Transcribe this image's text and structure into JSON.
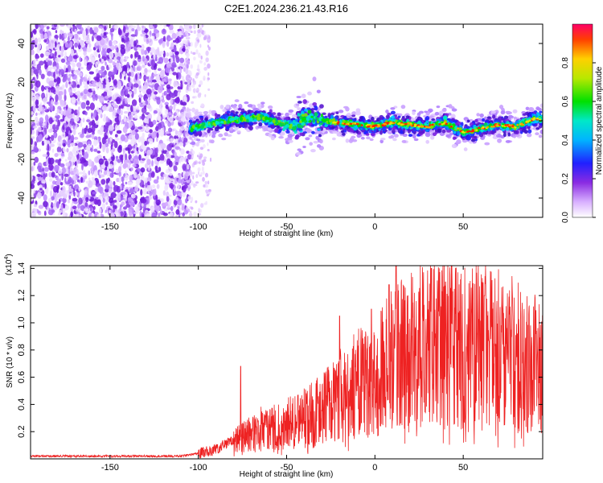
{
  "title": "C2E1.2024.236.21.43.R16",
  "colors": {
    "snr_line": "#ee2222",
    "axis": "#000000",
    "background": "#ffffff"
  },
  "chart_data": [
    {
      "type": "heatmap",
      "xlabel": "Height of straight line (km)",
      "ylabel": "Frequency (Hz)",
      "xlim": [
        -195,
        95
      ],
      "ylim": [
        -50,
        50
      ],
      "x_ticks": [
        -150,
        -100,
        -50,
        0,
        50
      ],
      "x_tick_labels": [
        "-150",
        "-100",
        "-50",
        "0",
        "50"
      ],
      "y_ticks": [
        -40,
        -20,
        0,
        20,
        40
      ],
      "y_tick_labels": [
        "-40",
        "-20",
        "0",
        "20",
        "40"
      ],
      "colorbar": {
        "label": "Normalized spectral amplitude",
        "range": [
          0,
          1
        ],
        "ticks": [
          0.0,
          0.2,
          0.4,
          0.6,
          0.8
        ],
        "tick_labels": [
          "0.0",
          "0.2",
          "0.4",
          "0.6",
          "0.8"
        ],
        "colormap": "rainbow (white-violet-blue-cyan-green-yellow-orange-red)"
      },
      "signal_region": {
        "noise_x_range": [
          -195,
          -105
        ],
        "trace_x_range": [
          -105,
          95
        ]
      },
      "trace_center_hz": [
        {
          "x": -105,
          "y": -4
        },
        {
          "x": -95,
          "y": -2
        },
        {
          "x": -85,
          "y": 0
        },
        {
          "x": -75,
          "y": 1
        },
        {
          "x": -65,
          "y": 2
        },
        {
          "x": -55,
          "y": -1
        },
        {
          "x": -45,
          "y": -3
        },
        {
          "x": -38,
          "y": 2
        },
        {
          "x": -30,
          "y": 0
        },
        {
          "x": -20,
          "y": -1
        },
        {
          "x": -10,
          "y": -2
        },
        {
          "x": 0,
          "y": -3
        },
        {
          "x": 10,
          "y": -1
        },
        {
          "x": 20,
          "y": -2
        },
        {
          "x": 30,
          "y": -3
        },
        {
          "x": 40,
          "y": -1
        },
        {
          "x": 50,
          "y": -6
        },
        {
          "x": 60,
          "y": -4
        },
        {
          "x": 70,
          "y": -2
        },
        {
          "x": 80,
          "y": -3
        },
        {
          "x": 90,
          "y": 1
        }
      ]
    },
    {
      "type": "line",
      "xlabel": "Height of straight line (km)",
      "ylabel": "SNR (10 * v/v)",
      "y_exponent_label": "(x10",
      "y_exponent_power": "4",
      "y_exponent_close": ")",
      "xlim": [
        -195,
        95
      ],
      "ylim": [
        0,
        1.42
      ],
      "x_ticks": [
        -150,
        -100,
        -50,
        0,
        50
      ],
      "x_tick_labels": [
        "-150",
        "-100",
        "-50",
        "0",
        "50"
      ],
      "y_ticks": [
        0.2,
        0.4,
        0.6,
        0.8,
        1.0,
        1.2,
        1.4
      ],
      "y_tick_labels": [
        "0.2",
        "0.4",
        "0.6",
        "0.8",
        "1.0",
        "1.2",
        "1.4"
      ],
      "series": [
        {
          "name": "SNR",
          "trend": [
            {
              "x": -195,
              "y": 0.02
            },
            {
              "x": -110,
              "y": 0.02
            },
            {
              "x": -100,
              "y": 0.04
            },
            {
              "x": -90,
              "y": 0.07
            },
            {
              "x": -80,
              "y": 0.14
            },
            {
              "x": -70,
              "y": 0.18
            },
            {
              "x": -60,
              "y": 0.22
            },
            {
              "x": -50,
              "y": 0.26
            },
            {
              "x": -40,
              "y": 0.3
            },
            {
              "x": -30,
              "y": 0.36
            },
            {
              "x": -20,
              "y": 0.46
            },
            {
              "x": -10,
              "y": 0.55
            },
            {
              "x": 0,
              "y": 0.6
            },
            {
              "x": 10,
              "y": 0.72
            },
            {
              "x": 20,
              "y": 0.8
            },
            {
              "x": 30,
              "y": 0.84
            },
            {
              "x": 40,
              "y": 0.86
            },
            {
              "x": 50,
              "y": 0.84
            },
            {
              "x": 60,
              "y": 0.82
            },
            {
              "x": 70,
              "y": 0.8
            },
            {
              "x": 80,
              "y": 0.76
            },
            {
              "x": 95,
              "y": 0.72
            }
          ],
          "peaks": [
            {
              "x": -76,
              "y": 0.68
            },
            {
              "x": -20,
              "y": 1.05
            },
            {
              "x": -2,
              "y": 1.1
            },
            {
              "x": 8,
              "y": 1.28
            },
            {
              "x": 12,
              "y": 1.42
            },
            {
              "x": 32,
              "y": 1.4
            },
            {
              "x": 40,
              "y": 1.3
            },
            {
              "x": 62,
              "y": 1.2
            }
          ]
        }
      ]
    }
  ]
}
